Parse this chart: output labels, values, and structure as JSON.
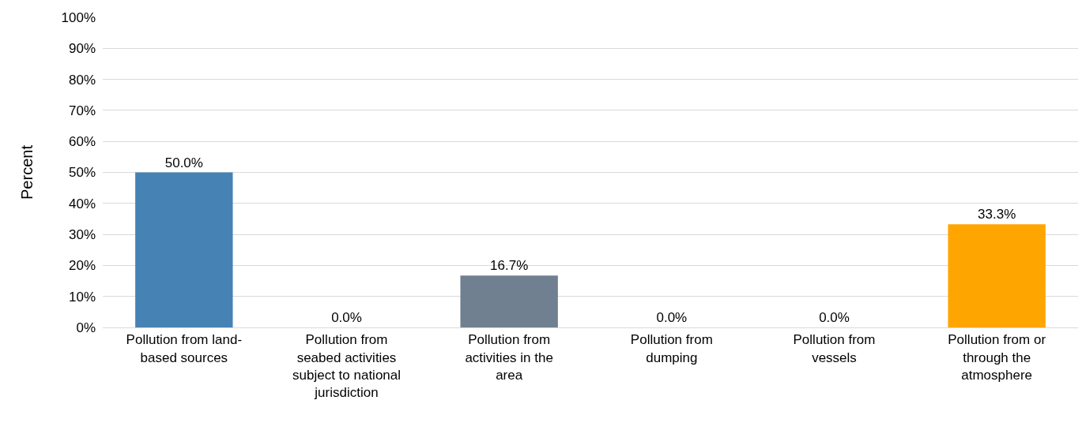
{
  "chart_data": {
    "type": "bar",
    "ylabel": "Percent",
    "categories": [
      "Pollution from land-based sources",
      "Pollution from seabed activities subject to national jurisdiction",
      "Pollution from activities in the area",
      "Pollution from dumping",
      "Pollution from vessels",
      "Pollution from or through the atmosphere"
    ],
    "values": [
      50.0,
      0,
      16.7,
      0,
      0,
      33.3
    ],
    "value_labels": [
      "50.0%",
      "0.0%",
      "16.7%",
      "0.0%",
      "0.0%",
      "33.3%"
    ],
    "colors": [
      "#4682b4",
      "#4682b4",
      "#708090",
      "#708090",
      "#708090",
      "#ffa500"
    ],
    "ylim": [
      0,
      100
    ],
    "yticks": [
      {
        "value": 0,
        "label": "0%"
      },
      {
        "value": 10,
        "label": "10%"
      },
      {
        "value": 20,
        "label": "20%"
      },
      {
        "value": 30,
        "label": "30%"
      },
      {
        "value": 40,
        "label": "40%"
      },
      {
        "value": 50,
        "label": "50%"
      },
      {
        "value": 60,
        "label": "60%"
      },
      {
        "value": 70,
        "label": "70%"
      },
      {
        "value": 80,
        "label": "80%"
      },
      {
        "value": 90,
        "label": "90%"
      },
      {
        "value": 100,
        "label": "100%"
      }
    ],
    "grid": "y"
  }
}
